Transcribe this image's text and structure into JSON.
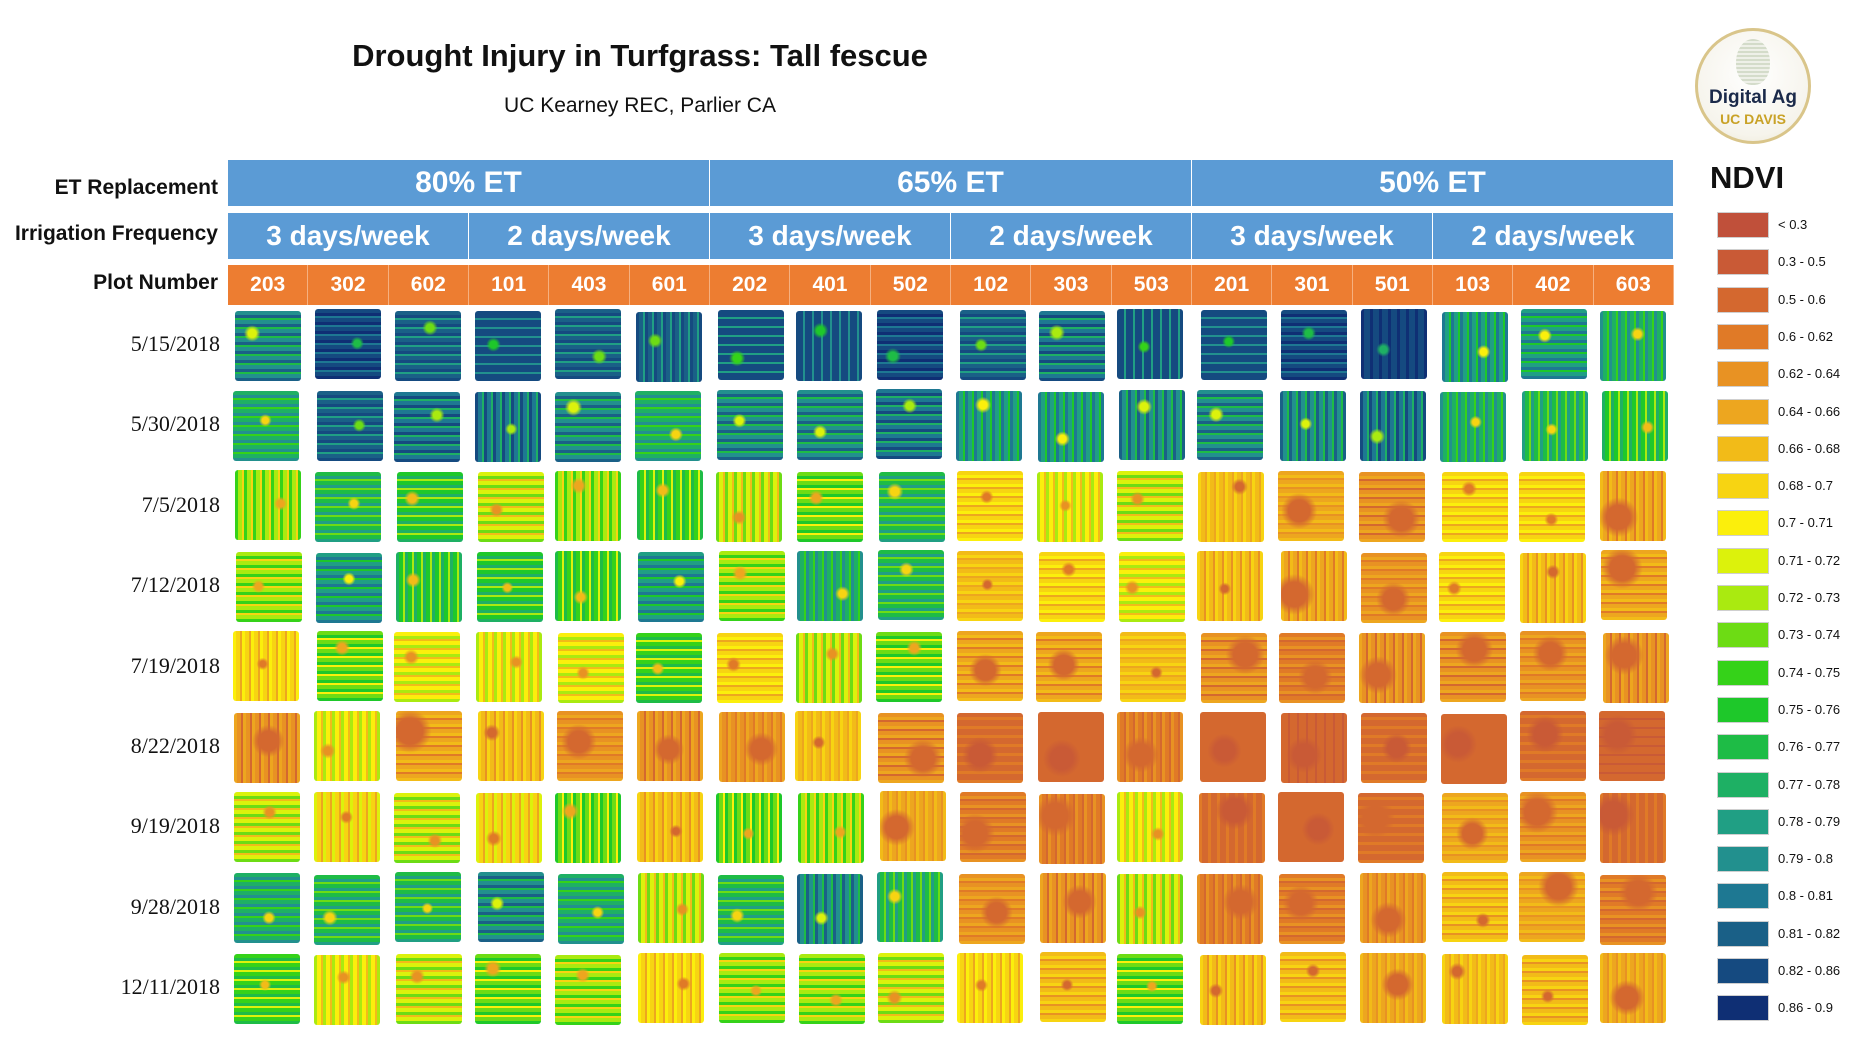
{
  "header": {
    "title": "Drought Injury in Turfgrass: Tall fescue",
    "subtitle": "UC Kearney REC, Parlier CA"
  },
  "logo": {
    "line1": "Digital Ag",
    "line2": "UC DAVIS"
  },
  "row_labels": {
    "et": "ET Replacement",
    "freq": "Irrigation Frequency",
    "plot": "Plot Number"
  },
  "chart_data": {
    "type": "heatmap",
    "title": "Drought Injury in Turfgrass: Tall fescue",
    "subtitle": "UC Kearney REC, Parlier CA",
    "et_replacement": [
      "80% ET",
      "65% ET",
      "50% ET"
    ],
    "irrigation_frequency": [
      "3 days/week",
      "2 days/week",
      "3 days/week",
      "2 days/week",
      "3 days/week",
      "2 days/week"
    ],
    "plots": [
      "203",
      "302",
      "602",
      "101",
      "403",
      "601",
      "202",
      "401",
      "502",
      "102",
      "303",
      "503",
      "201",
      "301",
      "501",
      "103",
      "402",
      "603"
    ],
    "dates": [
      "5/15/2018",
      "5/30/2018",
      "7/5/2018",
      "7/12/2018",
      "7/19/2018",
      "8/22/2018",
      "9/19/2018",
      "9/28/2018",
      "12/11/2018"
    ],
    "ndvi_estimates": [
      [
        0.79,
        0.84,
        0.81,
        0.83,
        0.81,
        0.81,
        0.82,
        0.83,
        0.84,
        0.81,
        0.8,
        0.82,
        0.83,
        0.84,
        0.85,
        0.78,
        0.78,
        0.77
      ],
      [
        0.77,
        0.81,
        0.8,
        0.8,
        0.79,
        0.77,
        0.79,
        0.79,
        0.8,
        0.78,
        0.78,
        0.79,
        0.79,
        0.79,
        0.8,
        0.77,
        0.76,
        0.75
      ],
      [
        0.72,
        0.76,
        0.75,
        0.71,
        0.72,
        0.74,
        0.71,
        0.73,
        0.76,
        0.68,
        0.7,
        0.71,
        0.67,
        0.65,
        0.62,
        0.68,
        0.68,
        0.64
      ],
      [
        0.72,
        0.78,
        0.75,
        0.75,
        0.74,
        0.78,
        0.72,
        0.77,
        0.76,
        0.67,
        0.68,
        0.7,
        0.66,
        0.64,
        0.63,
        0.68,
        0.66,
        0.64
      ],
      [
        0.68,
        0.73,
        0.7,
        0.7,
        0.7,
        0.74,
        0.68,
        0.71,
        0.73,
        0.64,
        0.64,
        0.67,
        0.62,
        0.6,
        0.62,
        0.62,
        0.63,
        0.62
      ],
      [
        0.62,
        0.7,
        0.64,
        0.66,
        0.63,
        0.62,
        0.63,
        0.67,
        0.62,
        0.58,
        0.56,
        0.6,
        0.57,
        0.52,
        0.58,
        0.56,
        0.58,
        0.52
      ],
      [
        0.71,
        0.69,
        0.71,
        0.69,
        0.73,
        0.66,
        0.73,
        0.72,
        0.65,
        0.6,
        0.6,
        0.7,
        0.58,
        0.57,
        0.59,
        0.65,
        0.63,
        0.58
      ],
      [
        0.77,
        0.76,
        0.76,
        0.79,
        0.77,
        0.71,
        0.76,
        0.79,
        0.76,
        0.63,
        0.62,
        0.71,
        0.6,
        0.6,
        0.63,
        0.66,
        0.65,
        0.6
      ],
      [
        0.74,
        0.7,
        0.71,
        0.73,
        0.72,
        0.68,
        0.72,
        0.72,
        0.71,
        0.68,
        0.66,
        0.73,
        0.66,
        0.66,
        0.65,
        0.67,
        0.66,
        0.65
      ]
    ],
    "legend_title": "NDVI",
    "legend": [
      {
        "label": "< 0.3",
        "color": "#c0503a"
      },
      {
        "label": "0.3 - 0.5",
        "color": "#c95a36"
      },
      {
        "label": "0.5 - 0.6",
        "color": "#d4682f"
      },
      {
        "label": "0.6 - 0.62",
        "color": "#e07a27"
      },
      {
        "label": "0.62 - 0.64",
        "color": "#e89223"
      },
      {
        "label": "0.64 - 0.66",
        "color": "#eda61f"
      },
      {
        "label": "0.66 - 0.68",
        "color": "#f2bb18"
      },
      {
        "label": "0.68 - 0.7",
        "color": "#f7d412"
      },
      {
        "label": "0.7 - 0.71",
        "color": "#fbef0c"
      },
      {
        "label": "0.71 - 0.72",
        "color": "#dcf20c"
      },
      {
        "label": "0.72 - 0.73",
        "color": "#aaea10"
      },
      {
        "label": "0.73 - 0.74",
        "color": "#6ddc14"
      },
      {
        "label": "0.74 - 0.75",
        "color": "#35d219"
      },
      {
        "label": "0.75 - 0.76",
        "color": "#1ec82a"
      },
      {
        "label": "0.76 - 0.77",
        "color": "#1ebc46"
      },
      {
        "label": "0.77 - 0.78",
        "color": "#1eb064"
      },
      {
        "label": "0.78 - 0.79",
        "color": "#209f84"
      },
      {
        "label": "0.79 - 0.8",
        "color": "#22908e"
      },
      {
        "label": "0.8 - 0.81",
        "color": "#1e7892"
      },
      {
        "label": "0.81 - 0.82",
        "color": "#1a6087"
      },
      {
        "label": "0.82 - 0.86",
        "color": "#154a80"
      },
      {
        "label": "0.86 - 0.9",
        "color": "#0f2f74"
      }
    ]
  }
}
